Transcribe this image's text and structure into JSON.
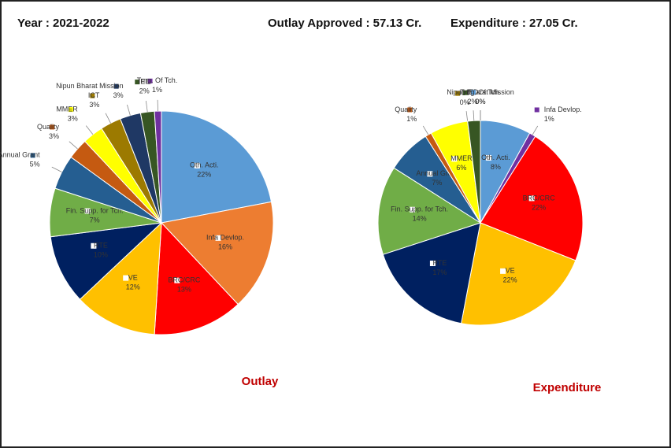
{
  "header": {
    "year": "Year : 2021-2022",
    "outlay": "Outlay Approved : 57.13 Cr.",
    "expenditure": "Expenditure : 27.05 Cr."
  },
  "chart_data": [
    {
      "type": "pie",
      "title": "Outlay",
      "categories": [
        "Oth. Acti.",
        "Infa Devlop.",
        "BRC/CRC",
        "VE",
        "RTE",
        "Fin. Supp. for Tch.",
        "Annual Grant",
        "Quality",
        "MMER",
        "ICT",
        "Nipun Bharat Mission",
        "IED",
        "Trng. Of Tch."
      ],
      "values": [
        22,
        16,
        13,
        12,
        10,
        7,
        5,
        3,
        3,
        3,
        3,
        2,
        1
      ],
      "value_labels": [
        "22%",
        "16%",
        "13%",
        "12%",
        "10%",
        "7%",
        "5%",
        "3%",
        "3%",
        "3%",
        "3%",
        "2%",
        "1%"
      ],
      "colors": [
        "#5b9bd5",
        "#ed7d31",
        "#ff0000",
        "#ffc000",
        "#002060",
        "#70ad47",
        "#255e91",
        "#c55a11",
        "#ffff00",
        "#9c7a00",
        "#1f3864",
        "#375623",
        "#7030a0"
      ]
    },
    {
      "type": "pie",
      "title": "Expenditure",
      "categories": [
        "Oth. Acti.",
        "Infa Devlop.",
        "BRC/CRC",
        "VE",
        "RTE",
        "Fin. Supp. for Tch.",
        "Annual Grant",
        "Quality",
        "MMER",
        "ICT",
        "IED",
        "Nipun Bharat Mission",
        "Trng. Of Tch."
      ],
      "values": [
        8,
        1,
        22,
        22,
        17,
        14,
        7,
        1,
        6,
        0,
        2,
        0,
        0
      ],
      "value_labels": [
        "8%",
        "1%",
        "22%",
        "22%",
        "17%",
        "14%",
        "7%",
        "1%",
        "6%",
        "0%",
        "2%",
        "0%",
        "0%"
      ],
      "colors": [
        "#5b9bd5",
        "#7030a0",
        "#ff0000",
        "#ffc000",
        "#002060",
        "#70ad47",
        "#255e91",
        "#c55a11",
        "#ffff00",
        "#9c7a00",
        "#375623",
        "#1f3864",
        "#5b9bd5"
      ]
    }
  ]
}
